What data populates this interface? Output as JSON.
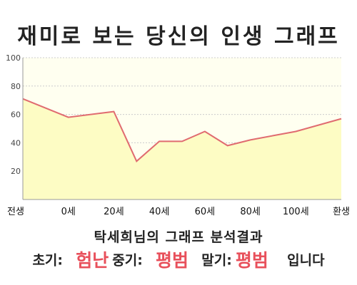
{
  "title": "재미로 보는 당신의 인생 그래프",
  "colors": {
    "line": "#e06b70",
    "fill": "#fdfcc4",
    "plot_bg": "#fffff0",
    "accent": "#e8505b"
  },
  "chart_data": {
    "type": "area",
    "title": "재미로 보는 당신의 인생 그래프",
    "xlabel": "",
    "ylabel": "",
    "ylim": [
      0,
      100
    ],
    "y_ticks": [
      20,
      40,
      60,
      80,
      100
    ],
    "x_tick_labels": [
      "전생",
      "0세",
      "20세",
      "40세",
      "60세",
      "80세",
      "100세",
      "환생"
    ],
    "grid": true,
    "legend": "none",
    "series": [
      {
        "x": [
          -20,
          0,
          20,
          30,
          40,
          50,
          60,
          70,
          80,
          90,
          100,
          120
        ],
        "y": [
          71,
          58,
          62,
          27,
          41,
          41,
          48,
          38,
          42,
          45,
          48,
          57
        ]
      }
    ]
  },
  "result": {
    "title": "탁세희님의 그래프 분석결과",
    "early_label": "초기:",
    "early_value": "험난",
    "mid_label": "중기:",
    "mid_value": "평범",
    "late_label": "말기:",
    "late_value": "평범",
    "suffix": "입니다"
  }
}
